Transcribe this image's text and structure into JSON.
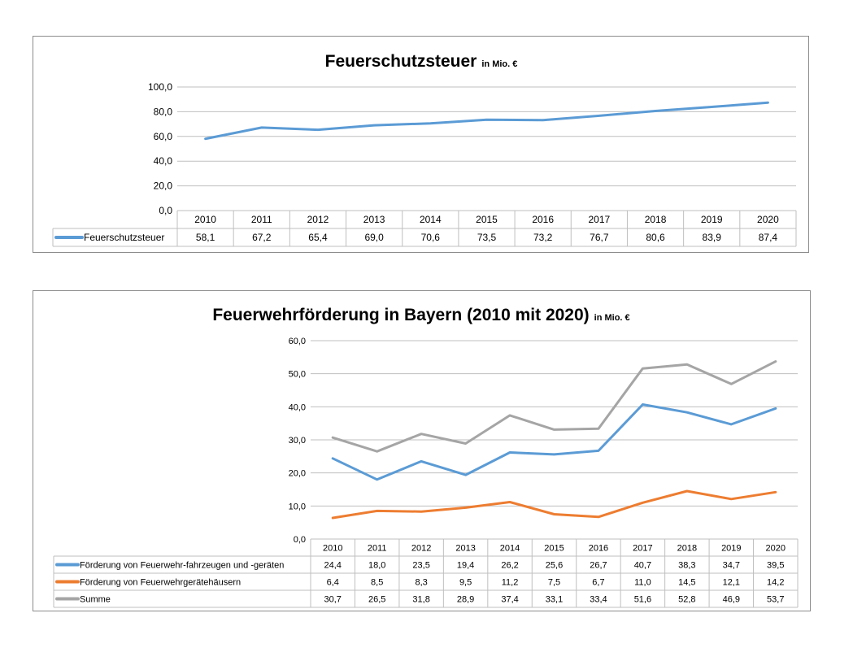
{
  "chart_data": [
    {
      "type": "line",
      "title": "Feuerschutzsteuer",
      "subtitle": "in Mio. €",
      "categories": [
        "2010",
        "2011",
        "2012",
        "2013",
        "2014",
        "2015",
        "2016",
        "2017",
        "2018",
        "2019",
        "2020"
      ],
      "series": [
        {
          "name": "Feuerschutzsteuer",
          "color": "#5b9bd5",
          "values": [
            58.1,
            67.2,
            65.4,
            69.0,
            70.6,
            73.5,
            73.2,
            76.7,
            80.6,
            83.9,
            87.4
          ],
          "labels": [
            "58,1",
            "67,2",
            "65,4",
            "69,0",
            "70,6",
            "73,5",
            "73,2",
            "76,7",
            "80,6",
            "83,9",
            "87,4"
          ]
        }
      ],
      "ylim": [
        0,
        100
      ],
      "yticks": [
        "0,0",
        "20,0",
        "40,0",
        "60,0",
        "80,0",
        "100,0"
      ],
      "grid": true,
      "legend": "data-table"
    },
    {
      "type": "line",
      "title": "Feuerwehrförderung in Bayern (2010 mit 2020)",
      "subtitle": "in Mio. €",
      "categories": [
        "2010",
        "2011",
        "2012",
        "2013",
        "2014",
        "2015",
        "2016",
        "2017",
        "2018",
        "2019",
        "2020"
      ],
      "series": [
        {
          "name": "Förderung von Feuerwehr-fahrzeugen und -geräten",
          "color": "#5b9bd5",
          "values": [
            24.4,
            18.0,
            23.5,
            19.4,
            26.2,
            25.6,
            26.7,
            40.7,
            38.3,
            34.7,
            39.5
          ],
          "labels": [
            "24,4",
            "18,0",
            "23,5",
            "19,4",
            "26,2",
            "25,6",
            "26,7",
            "40,7",
            "38,3",
            "34,7",
            "39,5"
          ]
        },
        {
          "name": "Förderung von Feuerwehrgerätehäusern",
          "color": "#ed7d31",
          "values": [
            6.4,
            8.5,
            8.3,
            9.5,
            11.2,
            7.5,
            6.7,
            11.0,
            14.5,
            12.1,
            14.2
          ],
          "labels": [
            "6,4",
            "8,5",
            "8,3",
            "9,5",
            "11,2",
            "7,5",
            "6,7",
            "11,0",
            "14,5",
            "12,1",
            "14,2"
          ]
        },
        {
          "name": "Summe",
          "color": "#a5a5a5",
          "values": [
            30.7,
            26.5,
            31.8,
            28.9,
            37.4,
            33.1,
            33.4,
            51.6,
            52.8,
            46.9,
            53.7
          ],
          "labels": [
            "30,7",
            "26,5",
            "31,8",
            "28,9",
            "37,4",
            "33,1",
            "33,4",
            "51,6",
            "52,8",
            "46,9",
            "53,7"
          ]
        }
      ],
      "ylim": [
        0,
        60
      ],
      "yticks": [
        "0,0",
        "10,0",
        "20,0",
        "30,0",
        "40,0",
        "50,0",
        "60,0"
      ],
      "grid": true,
      "legend": "data-table"
    }
  ]
}
